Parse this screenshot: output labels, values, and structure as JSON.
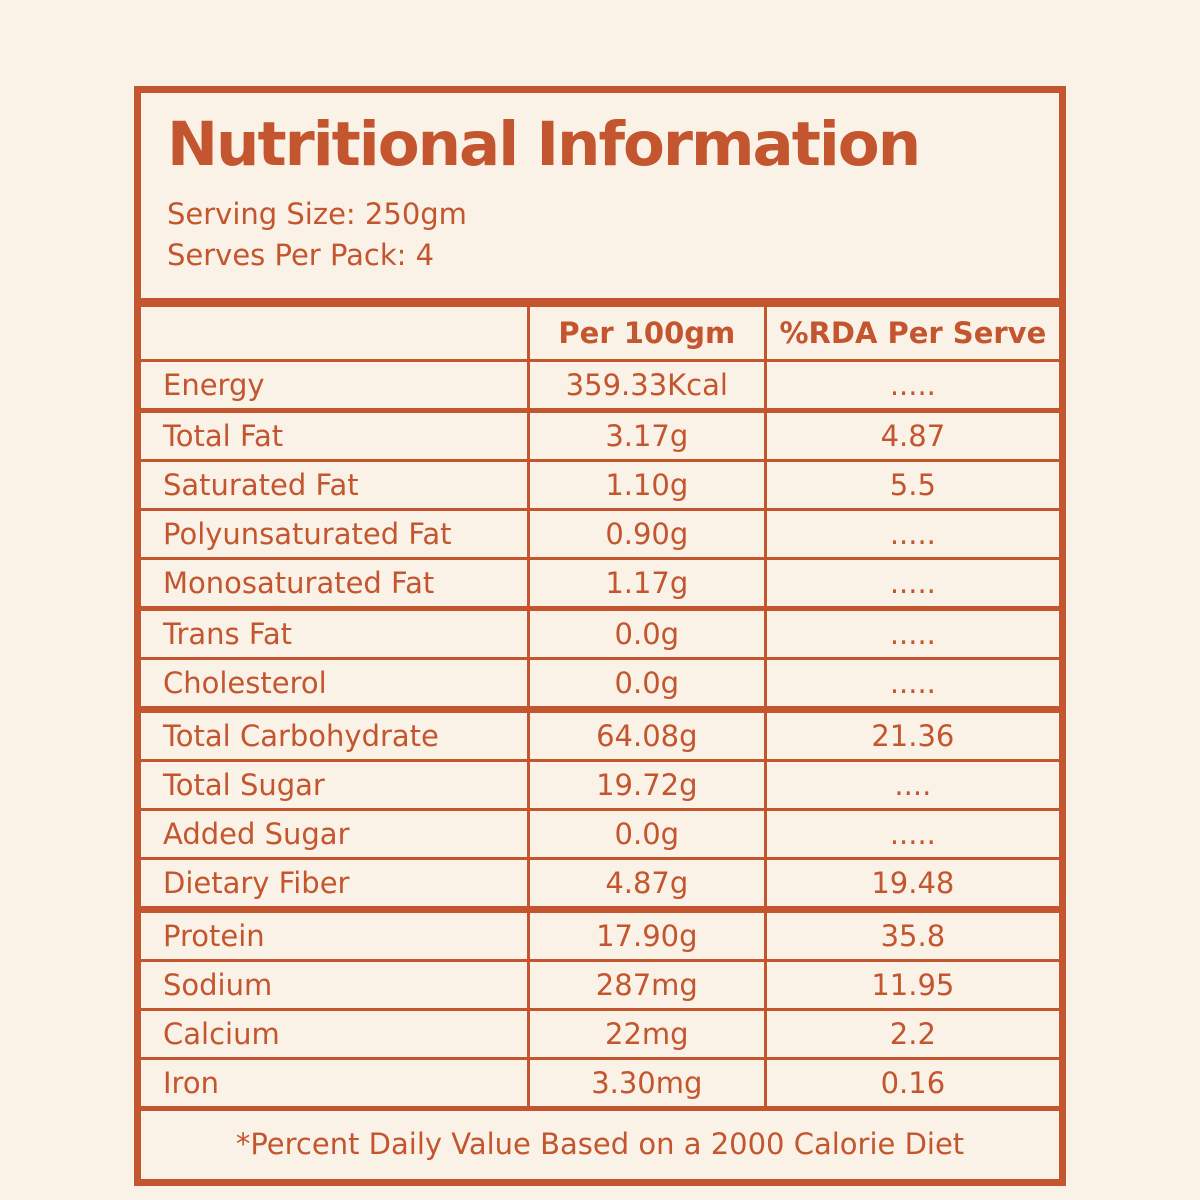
{
  "label": {
    "accent_color": "#C3562F",
    "background_color": "#FAF2E6",
    "title": "Nutritional Information",
    "serving_size": "Serving Size: 250gm",
    "serves_per_pack": "Serves Per Pack: 4",
    "table": {
      "columns": {
        "metric": "",
        "per_100gm": "Per 100gm",
        "rda_per_serve": "%RDA Per Serve"
      },
      "rows": [
        {
          "label": "Energy",
          "per_100gm": "359.33Kcal",
          "rda_per_serve": "....."
        },
        {
          "label": "Total Fat",
          "per_100gm": "3.17g",
          "rda_per_serve": "4.87"
        },
        {
          "label": "Saturated Fat",
          "per_100gm": "1.10g",
          "rda_per_serve": "5.5"
        },
        {
          "label": "Polyunsaturated Fat",
          "per_100gm": "0.90g",
          "rda_per_serve": "....."
        },
        {
          "label": "Monosaturated Fat",
          "per_100gm": "1.17g",
          "rda_per_serve": "....."
        },
        {
          "label": "Trans Fat",
          "per_100gm": "0.0g",
          "rda_per_serve": "....."
        },
        {
          "label": "Cholesterol",
          "per_100gm": "0.0g",
          "rda_per_serve": "....."
        },
        {
          "label": "Total Carbohydrate",
          "per_100gm": "64.08g",
          "rda_per_serve": "21.36"
        },
        {
          "label": "Total Sugar",
          "per_100gm": "19.72g",
          "rda_per_serve": "...."
        },
        {
          "label": "Added Sugar",
          "per_100gm": "0.0g",
          "rda_per_serve": "....."
        },
        {
          "label": "Dietary Fiber",
          "per_100gm": "4.87g",
          "rda_per_serve": "19.48"
        },
        {
          "label": "Protein",
          "per_100gm": "17.90g",
          "rda_per_serve": "35.8"
        },
        {
          "label": "Sodium",
          "per_100gm": "287mg",
          "rda_per_serve": "11.95"
        },
        {
          "label": "Calcium",
          "per_100gm": "22mg",
          "rda_per_serve": "2.2"
        },
        {
          "label": "Iron",
          "per_100gm": "3.30mg",
          "rda_per_serve": "0.16"
        }
      ]
    },
    "footnote": "*Percent Daily Value Based on a 2000 Calorie Diet"
  }
}
